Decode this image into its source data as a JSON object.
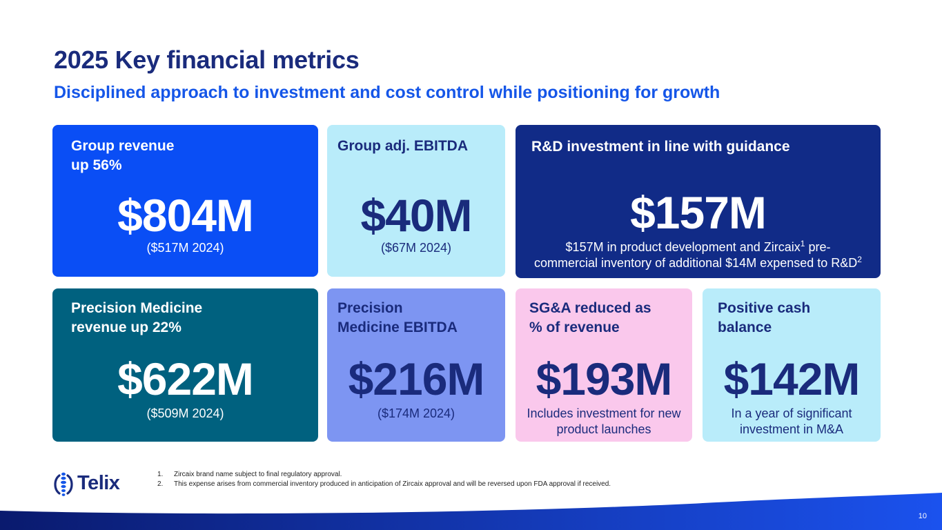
{
  "header": {
    "title": "2025 Key financial metrics",
    "subtitle": "Disciplined approach to investment and cost control while positioning for growth"
  },
  "cards": [
    {
      "label_lines": [
        "Group revenue",
        "up 56%"
      ],
      "value": "$804M",
      "note": "($517M 2024)",
      "color": "#0a4ef5"
    },
    {
      "label_lines": [
        "Group adj. EBITDA"
      ],
      "value": "$40M",
      "note": "($67M 2024)",
      "color": "#b9ecfa"
    },
    {
      "label_lines": [
        "R&D investment in line with guidance"
      ],
      "value": "$157M",
      "note_parts": {
        "a": "$157M in product development and Zircaix",
        "sup1": "1",
        "b": " pre-",
        "c": "commercial inventory of additional $14M expensed to R&D",
        "sup2": "2"
      },
      "color": "#112b87"
    },
    {
      "label_lines": [
        "Precision Medicine",
        "revenue up 22%"
      ],
      "value": "$622M",
      "note": "($509M 2024)",
      "color": "#00617f"
    },
    {
      "label_lines": [
        "Precision",
        "Medicine EBITDA"
      ],
      "value": "$216M",
      "note": "($174M 2024)",
      "color": "#7d95f2"
    },
    {
      "label_lines": [
        "SG&A reduced as",
        "% of revenue"
      ],
      "value": "$193M",
      "note_lines": [
        "Includes investment for new",
        "product launches"
      ],
      "color": "#fac8ec"
    },
    {
      "label_lines": [
        "Positive cash",
        "balance"
      ],
      "value": "$142M",
      "note_lines": [
        "In a year of significant",
        "investment in M&A"
      ],
      "color": "#b9ecfa"
    }
  ],
  "footer": {
    "logo_text": "Telix",
    "footnotes": [
      {
        "num": "1.",
        "text": "Zircaix brand name subject to final regulatory approval."
      },
      {
        "num": "2.",
        "text": "This expense arises from commercial inventory produced in anticipation of Zircaix approval and will be reversed upon FDA approval if received."
      }
    ],
    "page_number": "10"
  }
}
